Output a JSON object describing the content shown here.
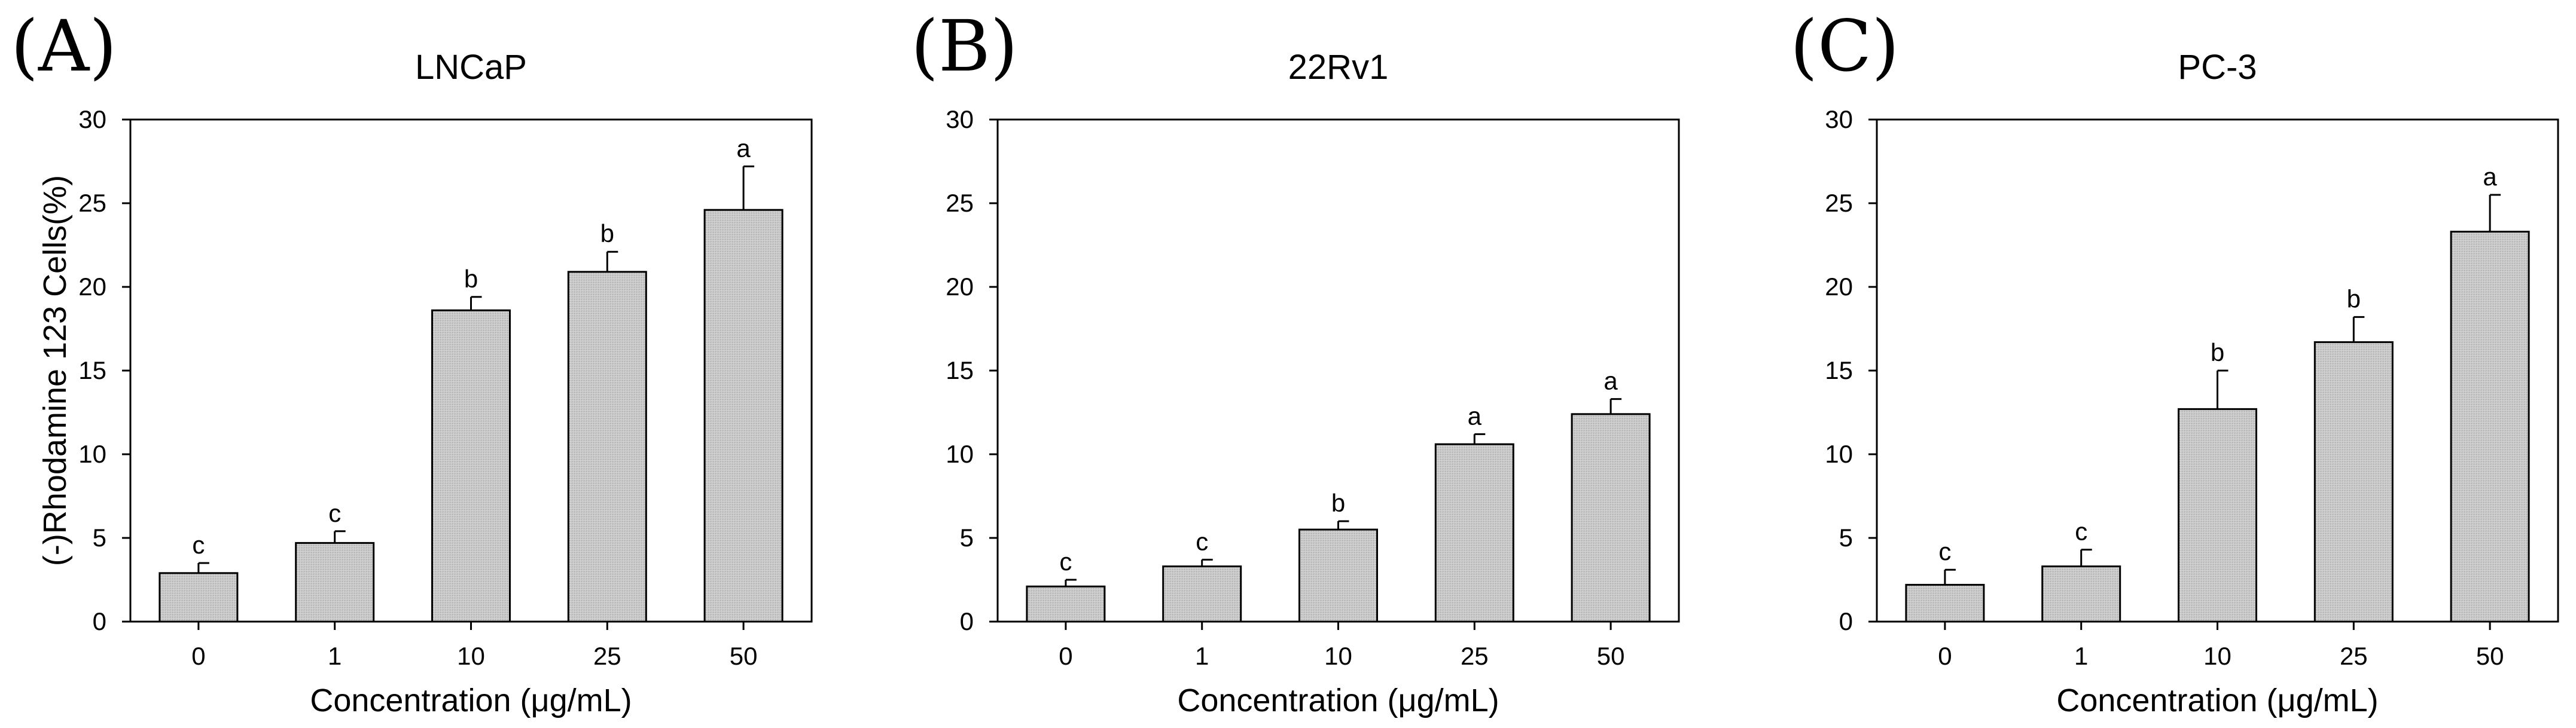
{
  "chart_data": [
    {
      "type": "bar",
      "panel_letter": "(A)",
      "title": "LNCaP",
      "xlabel": "Concentration (μg/mL)",
      "ylabel": "(-)Rhodamine 123 Cells(%)",
      "ylim": [
        0,
        30
      ],
      "yticks": [
        "0",
        "5",
        "10",
        "15",
        "20",
        "25",
        "30"
      ],
      "categories": [
        "0",
        "1",
        "10",
        "25",
        "50"
      ],
      "values": [
        2.9,
        4.7,
        18.6,
        20.9,
        24.6
      ],
      "errors": [
        0.6,
        0.7,
        0.8,
        1.2,
        2.6
      ],
      "significance": [
        "c",
        "c",
        "b",
        "b",
        "a"
      ]
    },
    {
      "type": "bar",
      "panel_letter": "(B)",
      "title": "22Rv1",
      "xlabel": "Concentration (μg/mL)",
      "ylabel": "",
      "ylim": [
        0,
        30
      ],
      "yticks": [
        "0",
        "5",
        "10",
        "15",
        "20",
        "25",
        "30"
      ],
      "categories": [
        "0",
        "1",
        "10",
        "25",
        "50"
      ],
      "values": [
        2.1,
        3.3,
        5.5,
        10.6,
        12.4
      ],
      "errors": [
        0.4,
        0.4,
        0.5,
        0.6,
        0.9
      ],
      "significance": [
        "c",
        "c",
        "b",
        "a",
        "a"
      ]
    },
    {
      "type": "bar",
      "panel_letter": "(C)",
      "title": "PC-3",
      "xlabel": "Concentration (μg/mL)",
      "ylabel": "",
      "ylim": [
        0,
        30
      ],
      "yticks": [
        "0",
        "5",
        "10",
        "15",
        "20",
        "25",
        "30"
      ],
      "categories": [
        "0",
        "1",
        "10",
        "25",
        "50"
      ],
      "values": [
        2.2,
        3.3,
        12.7,
        16.7,
        23.3
      ],
      "errors": [
        0.9,
        1.0,
        2.3,
        1.5,
        2.2
      ],
      "significance": [
        "c",
        "c",
        "b",
        "b",
        "a"
      ]
    }
  ],
  "colors": {
    "bar_fill": "#c8c8c8",
    "axis": "#000000",
    "background": "#ffffff"
  }
}
